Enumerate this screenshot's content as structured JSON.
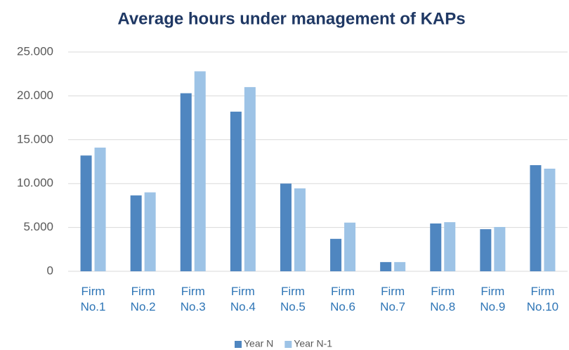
{
  "chart_data": {
    "type": "bar",
    "title": "Average hours under management of KAPs",
    "categories": [
      "Firm No.1",
      "Firm No.2",
      "Firm No.3",
      "Firm No.4",
      "Firm No.5",
      "Firm No.6",
      "Firm No.7",
      "Firm No.8",
      "Firm No.9",
      "Firm No.10"
    ],
    "series": [
      {
        "name": "Year N",
        "color": "#4f86c0",
        "values": [
          13200,
          8650,
          20300,
          18200,
          10000,
          3700,
          1050,
          5450,
          4800,
          12100
        ]
      },
      {
        "name": "Year N-1",
        "color": "#9dc3e6",
        "values": [
          14100,
          9000,
          22800,
          21000,
          9450,
          5550,
          1050,
          5600,
          5050,
          11700
        ]
      }
    ],
    "ylim": [
      0,
      25000
    ],
    "yticks": [
      0,
      {
        "value": 5000,
        "label": "5.000"
      },
      {
        "value": 10000,
        "label": "10.000"
      },
      {
        "value": 15000,
        "label": "15.000"
      },
      {
        "value": 20000,
        "label": "20.000"
      },
      {
        "value": 25000,
        "label": "25.000"
      }
    ],
    "grid": true,
    "legend": "bottom"
  }
}
